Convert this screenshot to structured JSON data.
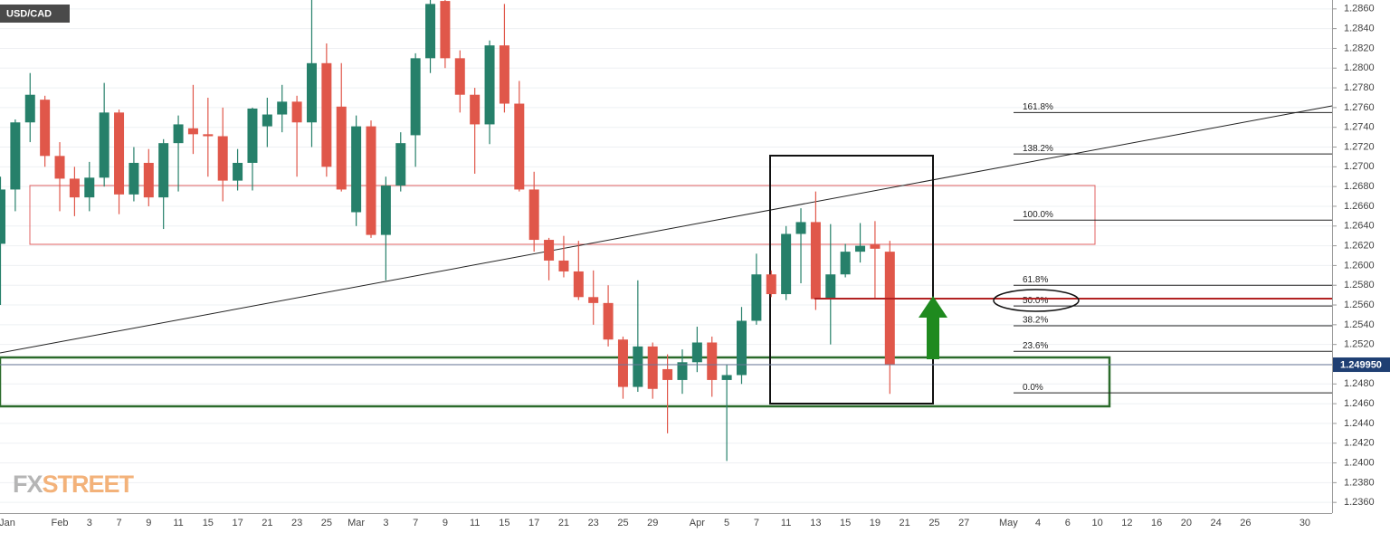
{
  "chart_data": {
    "type": "candlestick",
    "title": "USD/CAD",
    "watermark": [
      "FX",
      "STREET"
    ],
    "categories": [
      "Jan",
      null,
      null,
      null,
      "Feb",
      null,
      "3",
      null,
      "7",
      null,
      "9",
      null,
      "11",
      null,
      "15",
      null,
      "17",
      null,
      "21",
      null,
      "23",
      null,
      "25",
      null,
      "Mar",
      null,
      "3",
      null,
      "7",
      null,
      "9",
      null,
      "11",
      null,
      "15",
      null,
      "17",
      null,
      "21",
      null,
      "23",
      null,
      "25",
      null,
      "29",
      null,
      null,
      "Apr",
      null,
      "5",
      null,
      "7",
      null,
      "11",
      null,
      "13",
      null,
      "15",
      null,
      "19",
      null,
      "21",
      null,
      "25",
      null,
      "27",
      null,
      null,
      "May",
      null,
      "4",
      null,
      "6",
      null,
      "10",
      null,
      "12",
      null,
      "16",
      null,
      "20",
      null,
      "24",
      null,
      "26",
      null,
      null,
      null,
      "30",
      null
    ],
    "open": [
      1.2622,
      1.2677,
      1.2745,
      1.2768,
      1.2711,
      1.2688,
      1.2669,
      1.2689,
      1.2755,
      1.2672,
      1.2704,
      1.2669,
      1.2724,
      1.2739,
      1.2733,
      1.2731,
      1.2686,
      1.2704,
      1.2741,
      1.2753,
      1.2766,
      1.2745,
      1.2805,
      1.2761,
      1.2654,
      1.2741,
      1.2631,
      1.2681,
      1.2732,
      1.281,
      1.2868,
      1.281,
      1.2773,
      1.2743,
      1.2823,
      1.2764,
      1.2677,
      1.2626,
      1.2605,
      1.2594,
      1.2568,
      1.2562,
      1.2525,
      1.2477,
      1.2518,
      1.2495,
      1.2484,
      1.2502,
      1.2522,
      1.2484,
      1.2489,
      1.2544,
      1.2591,
      1.2571,
      1.2632,
      1.2644,
      1.2566,
      1.2591,
      1.2614,
      1.2621,
      1.2614,
      null,
      null,
      null,
      null,
      null,
      null,
      null,
      null,
      null,
      null,
      null,
      null,
      null,
      null,
      null,
      null,
      null,
      null,
      null,
      null,
      null,
      null,
      null,
      null,
      null,
      null,
      null,
      null,
      null
    ],
    "high": [
      1.269,
      1.2748,
      1.2795,
      1.2772,
      1.2725,
      1.27,
      1.2705,
      1.2785,
      1.2758,
      1.272,
      1.2718,
      1.2728,
      1.2752,
      1.2783,
      1.277,
      1.276,
      1.2718,
      1.276,
      1.277,
      1.2783,
      1.2772,
      1.287,
      1.2825,
      1.2805,
      1.2752,
      1.2747,
      1.269,
      1.2735,
      1.2815,
      1.287,
      1.287,
      1.2818,
      1.278,
      1.2828,
      1.2865,
      1.2787,
      1.2695,
      1.2628,
      1.263,
      1.2625,
      1.2595,
      1.258,
      1.2528,
      1.2585,
      1.2522,
      1.251,
      1.2515,
      1.2538,
      1.2528,
      1.25,
      1.2558,
      1.2612,
      1.2595,
      1.264,
      1.2658,
      1.2675,
      1.2642,
      1.2622,
      1.2643,
      1.2645,
      1.2625,
      null,
      null,
      null,
      null,
      null,
      null,
      null,
      null,
      null,
      null,
      null,
      null,
      null,
      null,
      null,
      null,
      null,
      null,
      null,
      null,
      null,
      null,
      null,
      null,
      null,
      null,
      null,
      null,
      null
    ],
    "low": [
      1.256,
      1.2655,
      1.2725,
      1.27,
      1.2655,
      1.265,
      1.2655,
      1.268,
      1.2652,
      1.2665,
      1.266,
      1.2637,
      1.2675,
      1.2713,
      1.269,
      1.2665,
      1.2676,
      1.2676,
      1.272,
      1.2735,
      1.269,
      1.272,
      1.269,
      1.2675,
      1.264,
      1.2628,
      1.2585,
      1.2675,
      1.27,
      1.2795,
      1.28,
      1.2755,
      1.2693,
      1.2723,
      1.2755,
      1.2675,
      1.2614,
      1.2585,
      1.2588,
      1.2565,
      1.254,
      1.2518,
      1.2465,
      1.2472,
      1.2465,
      1.243,
      1.247,
      1.2492,
      1.2467,
      1.2402,
      1.248,
      1.254,
      1.2568,
      1.2565,
      1.2582,
      1.2555,
      1.252,
      1.2588,
      1.2603,
      1.2567,
      1.247,
      null,
      null,
      null,
      null,
      null,
      null,
      null,
      null,
      null,
      null,
      null,
      null,
      null,
      null,
      null,
      null,
      null,
      null,
      null,
      null,
      null,
      null,
      null,
      null,
      null,
      null,
      null,
      null,
      null
    ],
    "close": [
      1.2677,
      1.2745,
      1.2773,
      1.2711,
      1.2688,
      1.2669,
      1.2689,
      1.2755,
      1.2672,
      1.2704,
      1.2669,
      1.2724,
      1.2743,
      1.2733,
      1.2731,
      1.2686,
      1.2704,
      1.2759,
      1.2753,
      1.2766,
      1.2745,
      1.2805,
      1.27,
      1.2677,
      1.2741,
      1.2631,
      1.2681,
      1.2724,
      1.281,
      1.2865,
      1.281,
      1.2773,
      1.2743,
      1.2823,
      1.2764,
      1.2677,
      1.2626,
      1.2605,
      1.2594,
      1.2568,
      1.2562,
      1.2525,
      1.2477,
      1.2518,
      1.2475,
      1.2484,
      1.2502,
      1.2522,
      1.2484,
      1.2489,
      1.2544,
      1.2591,
      1.2571,
      1.2632,
      1.2644,
      1.2566,
      1.2591,
      1.2614,
      1.262,
      1.2617,
      1.24995,
      null,
      null,
      null,
      null,
      null,
      null,
      null,
      null,
      null,
      null,
      null,
      null,
      null,
      null,
      null,
      null,
      null,
      null,
      null,
      null,
      null,
      null,
      null,
      null,
      null,
      null,
      null,
      null,
      null
    ],
    "up_color": "#26806a",
    "down_color": "#e0574a",
    "ylim": [
      1.2351,
      1.2869
    ],
    "yticks": [
      {
        "value": 1.236,
        "label": "1.2360"
      },
      {
        "value": 1.238,
        "label": "1.2380"
      },
      {
        "value": 1.24,
        "label": "1.2400"
      },
      {
        "value": 1.242,
        "label": "1.2420"
      },
      {
        "value": 1.244,
        "label": "1.2440"
      },
      {
        "value": 1.246,
        "label": "1.2460"
      },
      {
        "value": 1.248,
        "label": "1.2480"
      },
      {
        "value": 1.25,
        "label": "1.2500"
      },
      {
        "value": 1.252,
        "label": "1.2520"
      },
      {
        "value": 1.254,
        "label": "1.2540"
      },
      {
        "value": 1.256,
        "label": "1.2560"
      },
      {
        "value": 1.258,
        "label": "1.2580"
      },
      {
        "value": 1.26,
        "label": "1.2600"
      },
      {
        "value": 1.262,
        "label": "1.2620"
      },
      {
        "value": 1.264,
        "label": "1.2640"
      },
      {
        "value": 1.266,
        "label": "1.2660"
      },
      {
        "value": 1.268,
        "label": "1.2680"
      },
      {
        "value": 1.27,
        "label": "1.2700"
      },
      {
        "value": 1.272,
        "label": "1.2720"
      },
      {
        "value": 1.274,
        "label": "1.2740"
      },
      {
        "value": 1.276,
        "label": "1.2760"
      },
      {
        "value": 1.278,
        "label": "1.2780"
      },
      {
        "value": 1.28,
        "label": "1.2800"
      },
      {
        "value": 1.282,
        "label": "1.2820"
      },
      {
        "value": 1.284,
        "label": "1.2840"
      },
      {
        "value": 1.286,
        "label": "1.2860"
      }
    ],
    "grid": true,
    "last_price": {
      "value": 1.24995,
      "label": "1.249950"
    },
    "fib_levels": [
      {
        "label": "161.8%",
        "price": 1.2755
      },
      {
        "label": "138.2%",
        "price": 1.2713
      },
      {
        "label": "100.0%",
        "price": 1.2646
      },
      {
        "label": "61.8%",
        "price": 1.258
      },
      {
        "label": "50.0%",
        "price": 1.2559
      },
      {
        "label": "38.2%",
        "price": 1.2539
      },
      {
        "label": "23.6%",
        "price": 1.2513
      },
      {
        "label": "0.0%",
        "price": 1.2471
      }
    ]
  }
}
